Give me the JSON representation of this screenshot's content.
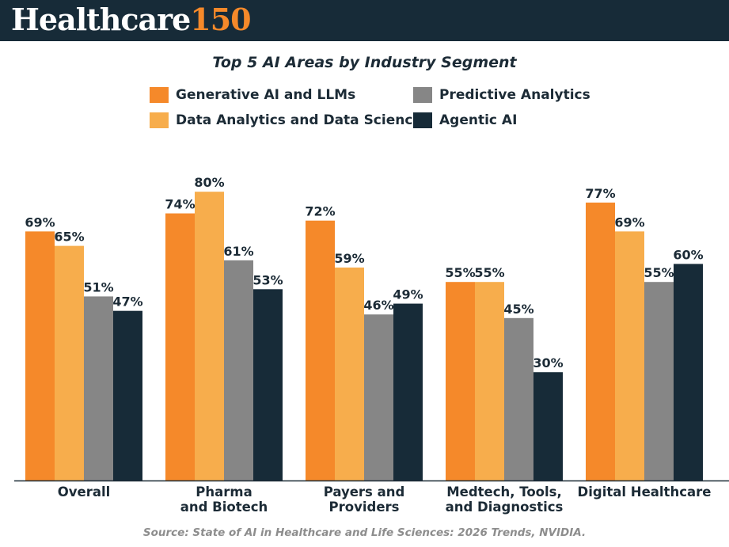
{
  "brand": {
    "name": "Healthcare",
    "number": "150"
  },
  "chart_data": {
    "type": "bar",
    "title": "Top 5 AI Areas by Industry Segment",
    "categories": [
      [
        "Overall"
      ],
      [
        "Pharma",
        "and Biotech"
      ],
      [
        "Payers and",
        "Providers"
      ],
      [
        "Medtech, Tools,",
        "and Diagnostics"
      ],
      [
        "Digital Healthcare"
      ]
    ],
    "series": [
      {
        "name": "Generative AI and LLMs",
        "color": "#f5892a",
        "values": [
          69,
          74,
          72,
          55,
          77
        ],
        "labels": [
          "69%",
          "74%",
          "72%",
          "55%",
          "77%"
        ]
      },
      {
        "name": "Data Analytics and Data Science",
        "color": "#f7ad4c",
        "values": [
          65,
          80,
          59,
          55,
          69
        ],
        "labels": [
          "65%",
          "80%",
          "59%",
          "55%",
          "69%"
        ]
      },
      {
        "name": "Predictive Analytics",
        "color": "#868686",
        "values": [
          51,
          61,
          46,
          45,
          55
        ],
        "labels": [
          "51%",
          "61%",
          "46%",
          "45%",
          "55%"
        ]
      },
      {
        "name": "Agentic AI",
        "color": "#172b38",
        "values": [
          47,
          53,
          49,
          30,
          60
        ],
        "labels": [
          "47%",
          "53%",
          "49%",
          "30%",
          "60%"
        ]
      }
    ],
    "ylim": [
      0,
      100
    ],
    "grid": false,
    "legend": "top"
  },
  "source": "Source: State of AI in Healthcare and Life Sciences: 2026 Trends, NVIDIA."
}
